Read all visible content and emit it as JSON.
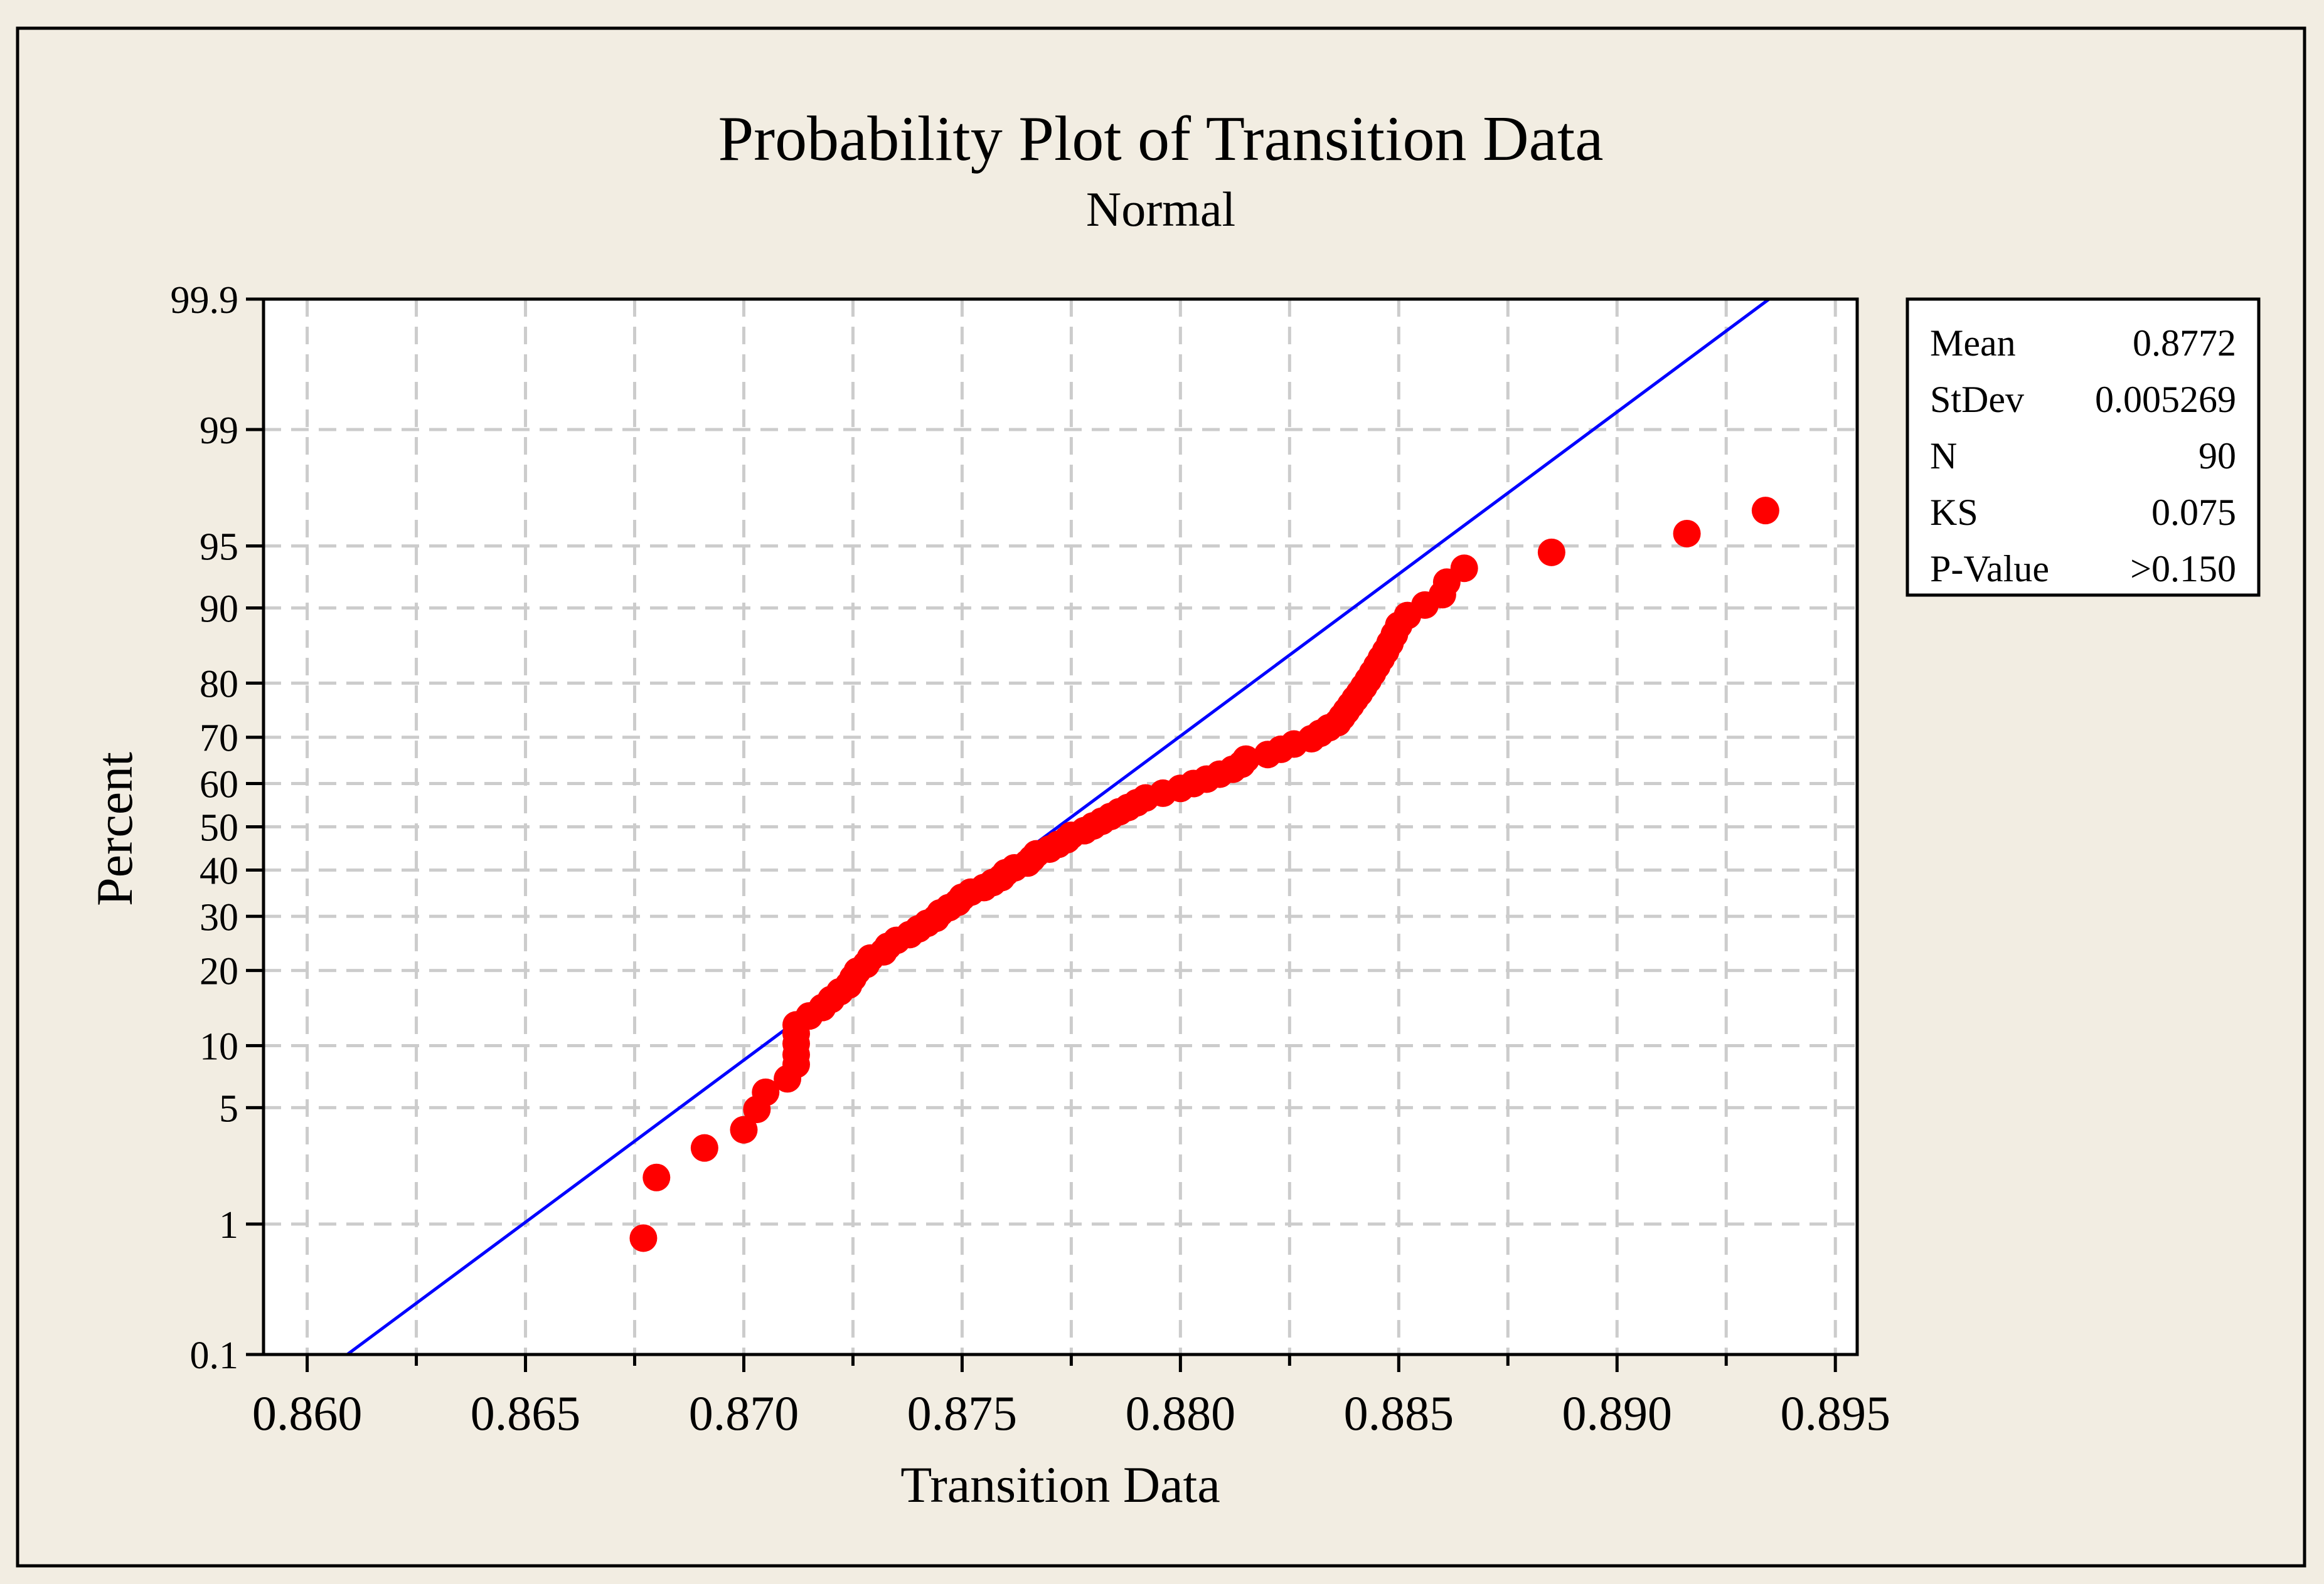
{
  "colors": {
    "background": "#f2ede2",
    "plot_background": "#ffffff",
    "grid": "#cccccc",
    "points": "#ff0000",
    "fit_line": "#0000ff",
    "frame": "#000000"
  },
  "chart_data": {
    "type": "scatter",
    "title": "Probability Plot of Transition Data",
    "subtitle": "Normal",
    "xlabel": "Transition Data",
    "ylabel": "Percent",
    "x_scale": "linear",
    "y_scale": "normal-probability",
    "xlim": [
      0.859,
      0.8955
    ],
    "ylim": [
      0.1,
      99.9
    ],
    "grid": true,
    "x_ticks": [
      {
        "value": 0.86,
        "label": "0.860"
      },
      {
        "value": 0.865,
        "label": "0.865"
      },
      {
        "value": 0.87,
        "label": "0.870"
      },
      {
        "value": 0.875,
        "label": "0.875"
      },
      {
        "value": 0.88,
        "label": "0.880"
      },
      {
        "value": 0.885,
        "label": "0.885"
      },
      {
        "value": 0.89,
        "label": "0.890"
      },
      {
        "value": 0.895,
        "label": "0.895"
      }
    ],
    "x_minor_grid": [
      0.8625,
      0.8675,
      0.8725,
      0.8775,
      0.8825,
      0.8875,
      0.8925
    ],
    "y_ticks": [
      {
        "value": 0.1,
        "label": "0.1"
      },
      {
        "value": 1,
        "label": "1"
      },
      {
        "value": 5,
        "label": "5"
      },
      {
        "value": 10,
        "label": "10"
      },
      {
        "value": 20,
        "label": "20"
      },
      {
        "value": 30,
        "label": "30"
      },
      {
        "value": 40,
        "label": "40"
      },
      {
        "value": 50,
        "label": "50"
      },
      {
        "value": 60,
        "label": "60"
      },
      {
        "value": 70,
        "label": "70"
      },
      {
        "value": 80,
        "label": "80"
      },
      {
        "value": 90,
        "label": "90"
      },
      {
        "value": 95,
        "label": "95"
      },
      {
        "value": 99,
        "label": "99"
      },
      {
        "value": 99.9,
        "label": "99.9"
      }
    ],
    "series": [
      {
        "x": [
          0.8677,
          0.868,
          0.8691,
          0.87,
          0.8703,
          0.8705,
          0.871,
          0.8712,
          0.8712,
          0.8712,
          0.8712,
          0.8712,
          0.8715,
          0.8718,
          0.872,
          0.8722,
          0.8724,
          0.8725,
          0.8726,
          0.8728,
          0.8729,
          0.8732,
          0.8733,
          0.8735,
          0.8738,
          0.874,
          0.8742,
          0.8744,
          0.8745,
          0.8747,
          0.8749,
          0.875,
          0.8752,
          0.8755,
          0.8757,
          0.8759,
          0.876,
          0.8762,
          0.8765,
          0.8766,
          0.8767,
          0.877,
          0.8772,
          0.8774,
          0.8775,
          0.8778,
          0.878,
          0.8782,
          0.8784,
          0.8786,
          0.8788,
          0.879,
          0.8792,
          0.8796,
          0.88,
          0.8803,
          0.8806,
          0.8809,
          0.8812,
          0.8814,
          0.8815,
          0.882,
          0.8823,
          0.8826,
          0.883,
          0.8832,
          0.8834,
          0.8836,
          0.8837,
          0.8838,
          0.8839,
          0.884,
          0.8841,
          0.8842,
          0.8843,
          0.8844,
          0.8845,
          0.8846,
          0.8847,
          0.8848,
          0.8849,
          0.885,
          0.8852,
          0.8856,
          0.886,
          0.8861,
          0.8865,
          0.8885,
          0.8916,
          0.8934
        ],
        "y": [
          0.8,
          2.0,
          3.0,
          3.8,
          4.9,
          6.0,
          7.0,
          8.2,
          9.1,
          10.2,
          11.3,
          12.3,
          13.4,
          14.5,
          15.6,
          16.7,
          17.7,
          18.8,
          19.9,
          21.0,
          22.1,
          23.2,
          24.2,
          25.3,
          26.4,
          27.5,
          28.6,
          29.6,
          30.7,
          31.8,
          32.9,
          34.0,
          35.1,
          36.1,
          37.2,
          38.3,
          39.4,
          40.5,
          41.6,
          42.6,
          43.7,
          44.8,
          45.9,
          47.0,
          48.0,
          49.1,
          50.2,
          51.3,
          52.4,
          53.5,
          54.5,
          55.6,
          56.7,
          57.8,
          58.9,
          60.0,
          61.0,
          62.1,
          63.2,
          64.3,
          65.4,
          66.4,
          67.5,
          68.6,
          69.7,
          70.8,
          71.9,
          72.9,
          74.0,
          75.1,
          76.2,
          77.3,
          78.3,
          79.4,
          80.5,
          81.6,
          82.7,
          83.8,
          84.8,
          85.9,
          87.0,
          88.1,
          89.2,
          90.3,
          91.3,
          92.4,
          93.5,
          94.6,
          95.7,
          96.8
        ]
      }
    ],
    "fit_line": {
      "mean": 0.8772,
      "stdev": 0.005269
    },
    "stats_box": {
      "placement": "right",
      "rows": [
        {
          "label": "Mean",
          "value": "0.8772"
        },
        {
          "label": "StDev",
          "value": "0.005269"
        },
        {
          "label": "N",
          "value": "90"
        },
        {
          "label": "KS",
          "value": "0.075"
        },
        {
          "label": "P-Value",
          "value": ">0.150"
        }
      ]
    }
  }
}
